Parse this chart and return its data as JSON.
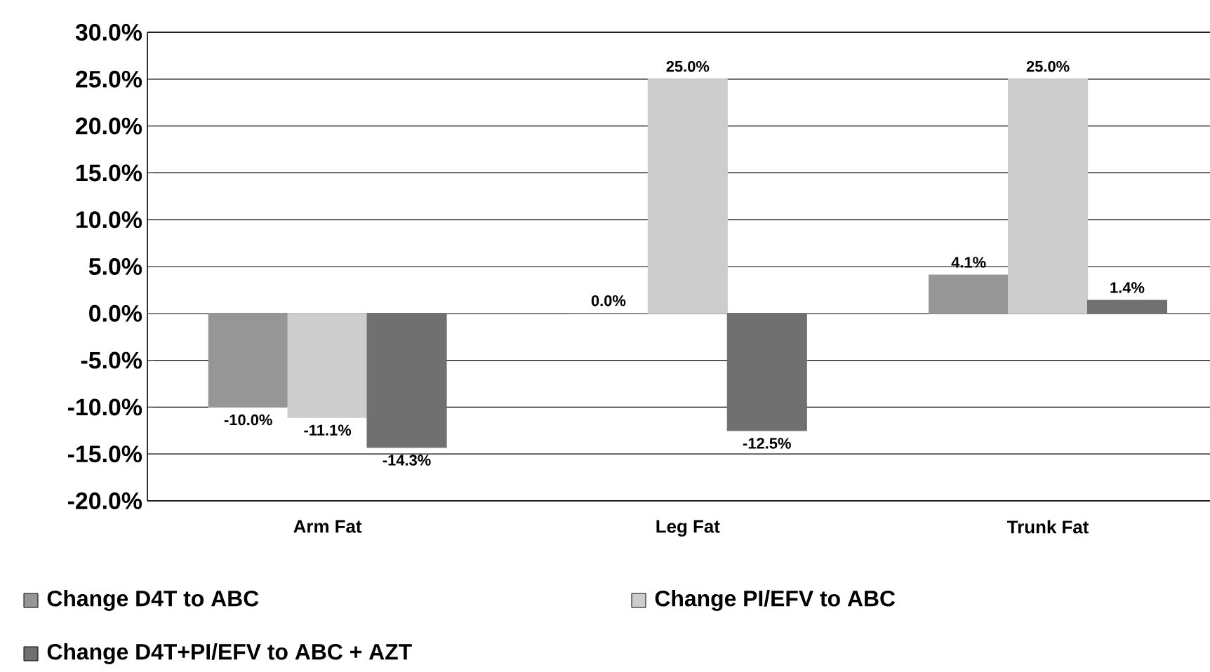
{
  "chart_data": {
    "type": "bar",
    "categories": [
      "Arm Fat",
      "Leg Fat",
      "Trunk Fat"
    ],
    "series": [
      {
        "name": "Change D4T to ABC",
        "color": "#969696",
        "values": [
          -10.0,
          0.0,
          4.1
        ],
        "value_labels": [
          "-10.0%",
          "0.0%",
          "4.1%"
        ]
      },
      {
        "name": "Change PI/EFV to ABC",
        "color": "#cdcdcd",
        "values": [
          -11.1,
          25.0,
          25.0
        ],
        "value_labels": [
          "-11.1%",
          "25.0%",
          "25.0%"
        ]
      },
      {
        "name": "Change D4T+PI/EFV to ABC + AZT",
        "color": "#707070",
        "values": [
          -14.3,
          -12.5,
          1.4
        ],
        "value_labels": [
          "-14.3%",
          "-12.5%",
          "1.4%"
        ]
      }
    ],
    "ylim": [
      -20,
      30
    ],
    "yticks": [
      {
        "value": -20,
        "label": "-20.0%"
      },
      {
        "value": -15,
        "label": "-15.0%"
      },
      {
        "value": -10,
        "label": "-10.0%"
      },
      {
        "value": -5,
        "label": "-5.0%"
      },
      {
        "value": 0,
        "label": "0.0%"
      },
      {
        "value": 5,
        "label": "5.0%"
      },
      {
        "value": 10,
        "label": "10.0%"
      },
      {
        "value": 15,
        "label": "15.0%"
      },
      {
        "value": 20,
        "label": "20.0%"
      },
      {
        "value": 25,
        "label": "25.0%"
      },
      {
        "value": 30,
        "label": "30.0%"
      }
    ],
    "grid": "y",
    "legend": "bottom"
  }
}
